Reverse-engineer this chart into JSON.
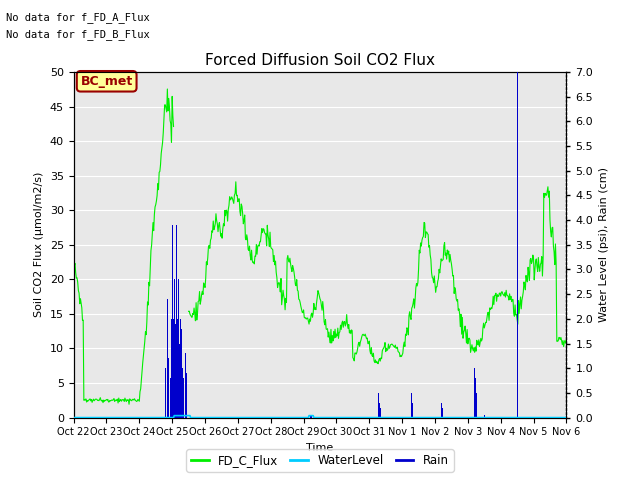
{
  "title": "Forced Diffusion Soil CO2 Flux",
  "xlabel": "Time",
  "ylabel_left": "Soil CO2 Flux (μmol/m2/s)",
  "ylabel_right": "Water Level (psi), Rain (cm)",
  "no_data_text": [
    "No data for f_FD_A_Flux",
    "No data for f_FD_B_Flux"
  ],
  "bc_met_label": "BC_met",
  "bc_met_color": "#990000",
  "bc_met_bg": "#ffff99",
  "ylim_left": [
    0,
    50
  ],
  "ylim_right": [
    0.0,
    7.0
  ],
  "yticks_left": [
    0,
    5,
    10,
    15,
    20,
    25,
    30,
    35,
    40,
    45,
    50
  ],
  "yticks_right": [
    0.0,
    0.5,
    1.0,
    1.5,
    2.0,
    2.5,
    3.0,
    3.5,
    4.0,
    4.5,
    5.0,
    5.5,
    6.0,
    6.5,
    7.0
  ],
  "xtick_labels": [
    "Oct 22",
    "Oct 23",
    "Oct 24",
    "Oct 25",
    "Oct 26",
    "Oct 27",
    "Oct 28",
    "Oct 29",
    "Oct 30",
    "Oct 31",
    "Nov 1",
    "Nov 2",
    "Nov 3",
    "Nov 4",
    "Nov 5",
    "Nov 6"
  ],
  "background_color": "#e8e8e8",
  "grid_color": "#ffffff",
  "fd_c_flux_color": "#00ee00",
  "water_level_color": "#00ccff",
  "rain_color": "#0000cc",
  "legend_labels": [
    "FD_C_Flux",
    "WaterLevel",
    "Rain"
  ],
  "title_fontsize": 11,
  "axis_fontsize": 8,
  "tick_fontsize": 8
}
